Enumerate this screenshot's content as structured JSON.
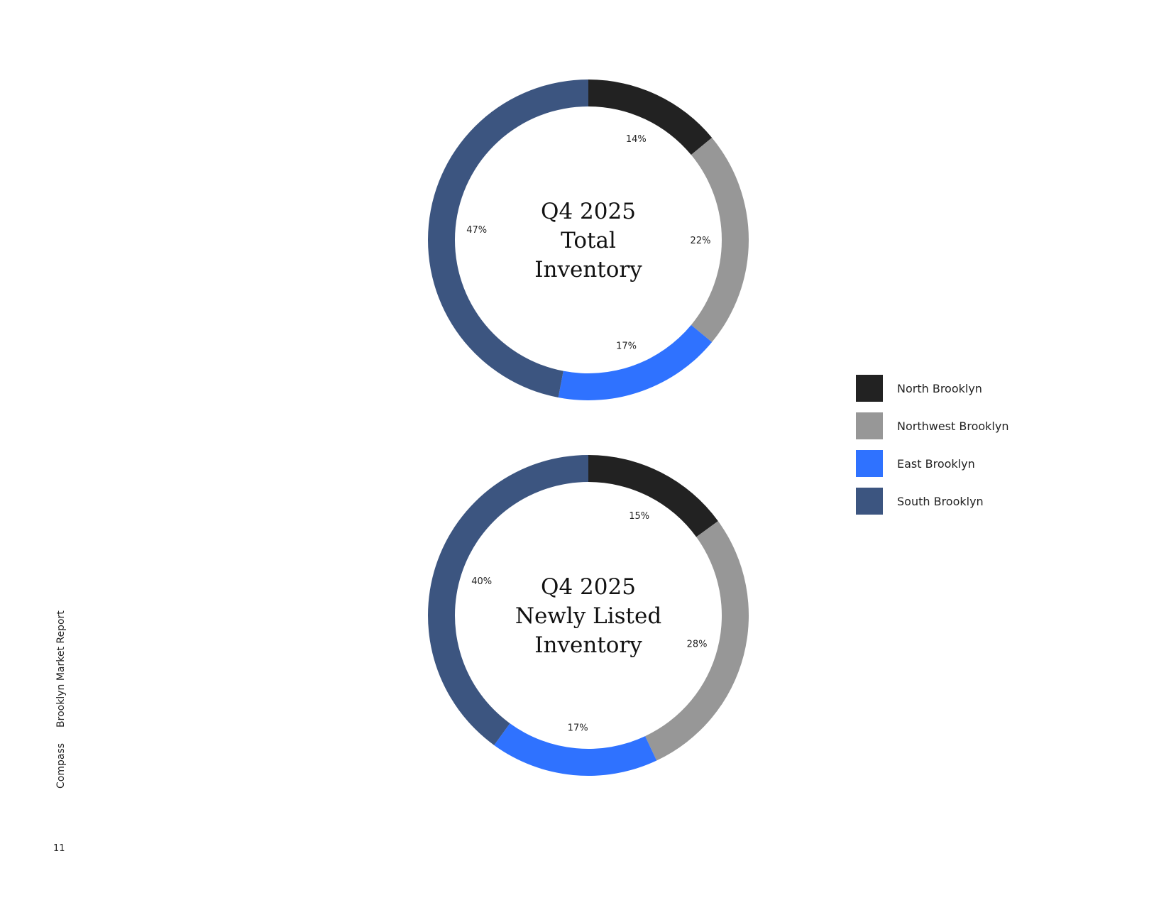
{
  "chart_data": [
    {
      "type": "pie",
      "title": "Q4 2025 Total Inventory",
      "title_lines": [
        "Q4 2025",
        "Total",
        "Inventory"
      ],
      "categories": [
        "North Brooklyn",
        "Northwest Brooklyn",
        "East Brooklyn",
        "South Brooklyn"
      ],
      "values": [
        14,
        22,
        17,
        47
      ],
      "labels": [
        "14%",
        "22%",
        "17%",
        "47%"
      ]
    },
    {
      "type": "pie",
      "title": "Q4 2025 Newly Listed Inventory",
      "title_lines": [
        "Q4 2025",
        "Newly Listed",
        "Inventory"
      ],
      "categories": [
        "North Brooklyn",
        "Northwest Brooklyn",
        "East Brooklyn",
        "South Brooklyn"
      ],
      "values": [
        15,
        28,
        17,
        40
      ],
      "labels": [
        "15%",
        "28%",
        "17%",
        "40%"
      ]
    }
  ],
  "colors": [
    "#222222",
    "#979797",
    "#2F72FF",
    "#3C5580"
  ],
  "legend": {
    "placement": "right",
    "items": [
      "North Brooklyn",
      "Northwest Brooklyn",
      "East Brooklyn",
      "South Brooklyn"
    ]
  },
  "footer": {
    "brand": "Compass",
    "report": "Brooklyn Market Report",
    "page": "11"
  }
}
